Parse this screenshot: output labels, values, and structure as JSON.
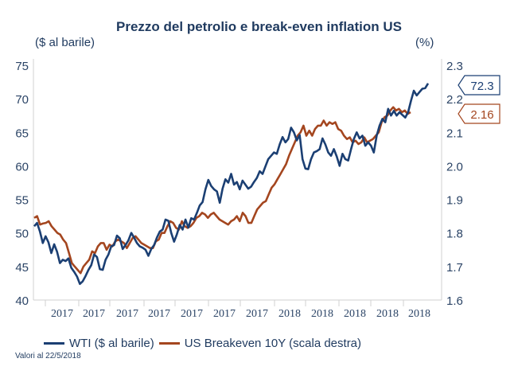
{
  "chart_data": {
    "type": "line",
    "title": "Prezzo del petrolio e break-even inflation US",
    "ylabel_left": "($ al barile)",
    "ylabel_right": "(%)",
    "y_left": {
      "min": 40,
      "max": 75,
      "ticks": [
        "40",
        "45",
        "50",
        "55",
        "60",
        "65",
        "70",
        "75"
      ]
    },
    "y_right": {
      "min": 1.6,
      "max": 2.3,
      "ticks": [
        "1.6",
        "1.7",
        "1.8",
        "1.9",
        "2.0",
        "2.1",
        "2.2",
        "2.3"
      ]
    },
    "x_tick_labels": [
      "2017",
      "2017",
      "2017",
      "2017",
      "2017",
      "2017",
      "2017",
      "2018",
      "2018",
      "2018",
      "2018",
      "2018"
    ],
    "grid": false,
    "legend_position": "bottom",
    "series": [
      {
        "name": "WTI ($ al barile)",
        "axis": "left",
        "color": "#1b3f73",
        "end_label": "72.3",
        "values": [
          51.0,
          51.5,
          50.2,
          48.5,
          49.5,
          48.6,
          47.0,
          48.3,
          47.2,
          45.5,
          46.0,
          45.8,
          46.2,
          44.8,
          44.2,
          43.5,
          42.4,
          42.8,
          43.6,
          44.5,
          45.2,
          46.8,
          46.4,
          44.6,
          44.5,
          46.0,
          46.8,
          48.0,
          48.2,
          49.6,
          49.2,
          47.6,
          48.2,
          48.9,
          50.0,
          49.3,
          48.5,
          48.0,
          47.8,
          47.5,
          46.6,
          47.6,
          48.2,
          49.3,
          50.2,
          50.5,
          52.0,
          51.8,
          50.0,
          48.7,
          49.8,
          51.2,
          50.5,
          52.0,
          50.8,
          52.2,
          52.0,
          53.0,
          54.1,
          54.6,
          56.5,
          57.9,
          57.0,
          56.5,
          56.2,
          54.5,
          56.6,
          58.0,
          57.5,
          58.8,
          57.2,
          57.6,
          56.5,
          57.8,
          57.2,
          56.6,
          56.9,
          57.6,
          58.2,
          59.2,
          58.8,
          59.9,
          61.0,
          61.5,
          62.0,
          61.8,
          63.2,
          64.3,
          63.5,
          64.0,
          65.7,
          65.0,
          63.8,
          64.6,
          61.0,
          59.6,
          59.5,
          61.0,
          62.0,
          62.2,
          62.5,
          64.1,
          63.2,
          62.0,
          61.5,
          62.5,
          61.4,
          60.0,
          61.8,
          61.0,
          60.8,
          62.5,
          64.0,
          65.0,
          64.1,
          64.5,
          63.0,
          63.5,
          63.0,
          62.0,
          64.5,
          66.0,
          67.0,
          66.5,
          68.5,
          67.5,
          68.2,
          67.5,
          68.0,
          67.6,
          67.2,
          68.0,
          69.7,
          71.2,
          70.5,
          71.0,
          71.5,
          71.6,
          72.3
        ]
      },
      {
        "name": "US Breakeven 10Y (scala destra)",
        "axis": "right",
        "color": "#a4461f",
        "end_label": "2.16",
        "values": [
          1.845,
          1.85,
          1.825,
          1.828,
          1.83,
          1.835,
          1.82,
          1.81,
          1.8,
          1.795,
          1.78,
          1.77,
          1.74,
          1.71,
          1.7,
          1.69,
          1.68,
          1.7,
          1.71,
          1.72,
          1.745,
          1.74,
          1.76,
          1.77,
          1.77,
          1.75,
          1.765,
          1.76,
          1.775,
          1.78,
          1.775,
          1.77,
          1.755,
          1.77,
          1.785,
          1.79,
          1.78,
          1.77,
          1.765,
          1.76,
          1.755,
          1.755,
          1.775,
          1.78,
          1.8,
          1.8,
          1.82,
          1.835,
          1.83,
          1.815,
          1.81,
          1.835,
          1.82,
          1.815,
          1.82,
          1.83,
          1.845,
          1.85,
          1.86,
          1.855,
          1.845,
          1.855,
          1.86,
          1.85,
          1.84,
          1.835,
          1.83,
          1.825,
          1.835,
          1.84,
          1.85,
          1.835,
          1.86,
          1.85,
          1.83,
          1.83,
          1.85,
          1.87,
          1.88,
          1.89,
          1.895,
          1.915,
          1.935,
          1.945,
          1.96,
          1.975,
          1.99,
          2.005,
          2.03,
          2.05,
          2.07,
          2.09,
          2.1,
          2.12,
          2.09,
          2.105,
          2.09,
          2.11,
          2.12,
          2.12,
          2.135,
          2.12,
          2.13,
          2.125,
          2.13,
          2.11,
          2.105,
          2.09,
          2.08,
          2.085,
          2.07,
          2.075,
          2.065,
          2.07,
          2.085,
          2.07,
          2.075,
          2.08,
          2.09,
          2.1,
          2.13,
          2.145,
          2.15,
          2.165,
          2.175,
          2.165,
          2.17,
          2.16,
          2.165,
          2.155,
          2.16
        ]
      }
    ],
    "annotations": [
      "Valori al 22/5/2018"
    ]
  },
  "title": "Prezzo del petrolio e break-even inflation US",
  "units": {
    "left": "($ al barile)",
    "right": "(%)"
  },
  "legend": {
    "wti": "WTI ($ al barile)",
    "breakeven": "US Breakeven 10Y (scala destra)"
  },
  "note": "Valori al 22/5/2018"
}
